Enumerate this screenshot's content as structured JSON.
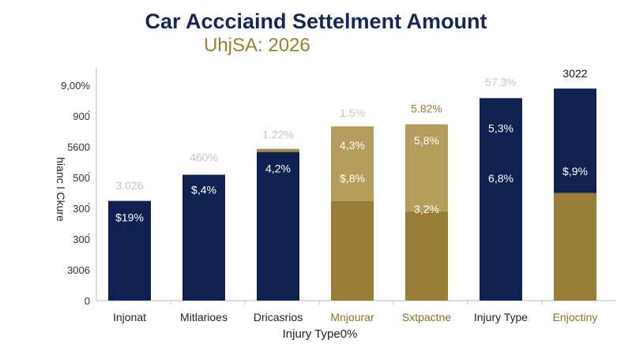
{
  "chart_data": {
    "type": "bar",
    "stacked": true,
    "title": "Car Accciaind Settelment Amount",
    "subtitle": "UhjSA: 2026",
    "xlabel": "Injury Type0%",
    "ylabel": "hianc l Ckure",
    "y_tick_labels": [
      "0",
      "3006",
      "300́",
      "300́",
      "500́",
      "5600",
      "900́",
      "9,00%"
    ],
    "ylim": [
      0,
      7
    ],
    "grid": false,
    "categories": [
      "Injonat",
      "Mitlarioes",
      "Dricasrios",
      "Mnjourar",
      "Sxtpactne",
      "Injury Type",
      "Enjoctiny"
    ],
    "category_colors": [
      "#222222",
      "#222222",
      "#222222",
      "#8a7326",
      "#8a7326",
      "#222222",
      "#8a7326"
    ],
    "bars": [
      {
        "segments": [
          {
            "value": 3.24,
            "color": "#0f2150"
          }
        ],
        "labels": [
          {
            "text": "3.026",
            "y": 3.75,
            "color": "#c4c4c4"
          },
          {
            "text": "$19%",
            "y": 2.7,
            "color": "#ffffff"
          }
        ]
      },
      {
        "segments": [
          {
            "value": 4.09,
            "color": "#0f2150"
          }
        ],
        "labels": [
          {
            "text": "460%",
            "y": 4.65,
            "color": "#c4c4c4"
          },
          {
            "text": "$,4%",
            "y": 3.6,
            "color": "#ffffff"
          }
        ]
      },
      {
        "segments": [
          {
            "value": 4.83,
            "color": "#0f2150"
          },
          {
            "value": 0.1,
            "color": "#a08a45"
          }
        ],
        "labels": [
          {
            "text": "1.22%",
            "y": 5.4,
            "color": "#c4c4c4"
          },
          {
            "text": "4,2%",
            "y": 4.3,
            "color": "#ffffff"
          }
        ]
      },
      {
        "segments": [
          {
            "value": 3.24,
            "color": "#9a7d35"
          },
          {
            "value": 2.42,
            "color": "#b59e5c"
          }
        ],
        "labels": [
          {
            "text": "1.5%",
            "y": 6.1,
            "color": "#c4c4c4"
          },
          {
            "text": "4,3%",
            "y": 5.05,
            "color": "#ffffff"
          },
          {
            "text": "$,8%",
            "y": 3.98,
            "color": "#ffffff"
          }
        ]
      },
      {
        "segments": [
          {
            "value": 2.9,
            "color": "#9a7d35"
          },
          {
            "value": 2.83,
            "color": "#b59e5c"
          }
        ],
        "labels": [
          {
            "text": "5.82%",
            "y": 6.25,
            "color": "#9a8030"
          },
          {
            "text": "5,8%",
            "y": 5.2,
            "color": "#ffffff"
          },
          {
            "text": "3,2%",
            "y": 2.98,
            "color": "#ffffff"
          }
        ]
      },
      {
        "segments": [
          {
            "value": 6.58,
            "color": "#0f2150"
          }
        ],
        "labels": [
          {
            "text": "57.3%",
            "y": 7.1,
            "color": "#c4c4c4"
          },
          {
            "text": "5,3%",
            "y": 5.6,
            "color": "#ffffff"
          },
          {
            "text": "6,8%",
            "y": 3.98,
            "color": "#ffffff"
          }
        ]
      },
      {
        "segments": [
          {
            "value": 3.5,
            "color": "#9a7d35"
          },
          {
            "value": 3.39,
            "color": "#0f2150"
          }
        ],
        "labels": [
          {
            "text": "3022",
            "y": 7.38,
            "color": "#111111"
          },
          {
            "text": "$,9%",
            "y": 4.2,
            "color": "#ffffff"
          }
        ]
      }
    ]
  }
}
